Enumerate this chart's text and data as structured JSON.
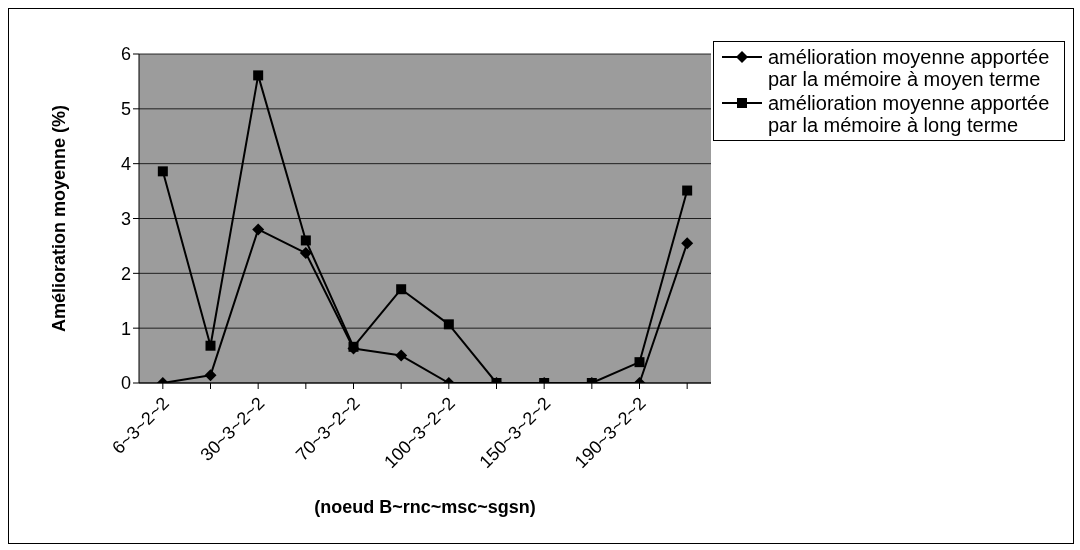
{
  "chart_data": {
    "type": "line",
    "xlabel": "(noeud B~rnc~msc~sgsn)",
    "ylabel": "Amélioration moyenne (%)",
    "categories": [
      "6~3~2~2",
      null,
      "30~3~2~2",
      null,
      "70~3~2~2",
      null,
      "100~3~2~2",
      null,
      "150~3~2~2",
      null,
      "190~3~2~2",
      null
    ],
    "series": [
      {
        "name": "amélioration moyenne apportée par la mémoire à moyen terme",
        "color": "#000000",
        "marker": "diamond",
        "values": [
          0,
          0.14,
          2.8,
          2.37,
          0.63,
          0.5,
          0,
          0,
          0,
          0,
          0,
          2.55
        ]
      },
      {
        "name": "amélioration moyenne apportée par la mémoire à long terme",
        "color": "#000000",
        "marker": "square",
        "values": [
          3.86,
          0.68,
          5.61,
          2.6,
          0.66,
          1.71,
          1.07,
          0,
          0,
          0,
          0.38,
          3.51
        ]
      }
    ],
    "ylim": [
      0,
      6
    ],
    "yticks": [
      0,
      1,
      2,
      3,
      4,
      5,
      6
    ],
    "grid": "y",
    "legend": "top right",
    "line_style": "solid"
  }
}
